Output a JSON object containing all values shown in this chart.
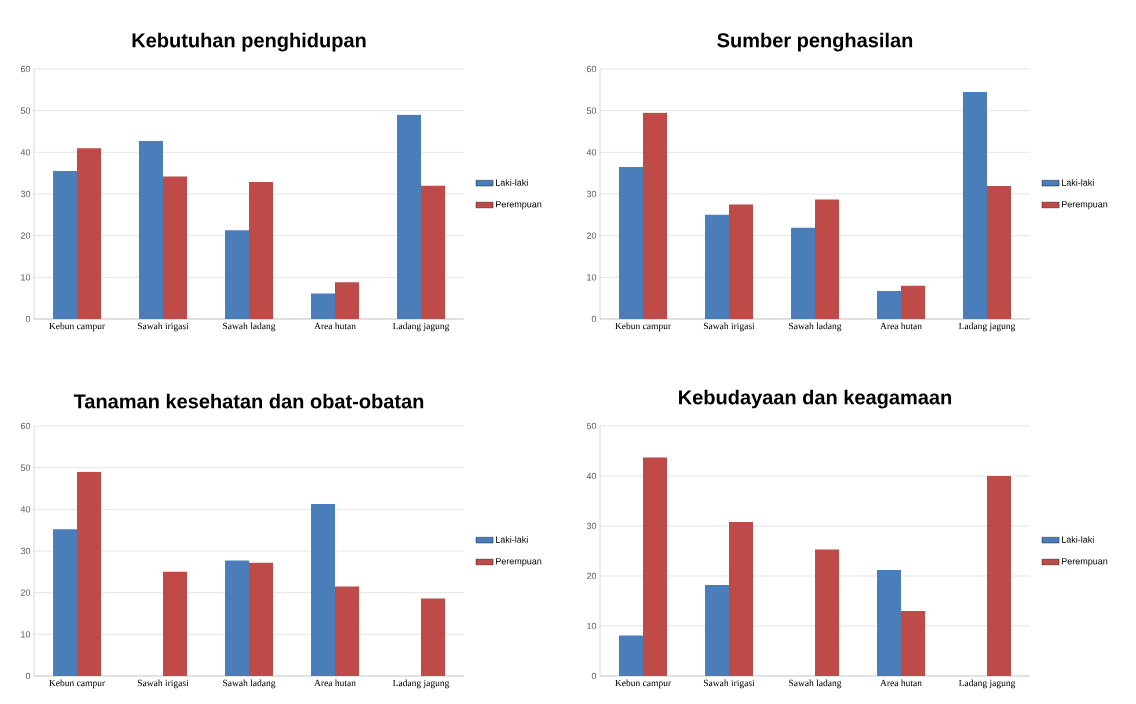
{
  "chart_data": [
    {
      "type": "bar",
      "title": "Kebutuhan penghidupan",
      "categories": [
        "Kebun campur",
        "Sawah irigasi",
        "Sawah ladang",
        "Area hutan",
        "Ladang jagung"
      ],
      "series": [
        {
          "name": "Laki-laki",
          "color": "#4a7ebb",
          "values": [
            35.5,
            42.7,
            21.3,
            6.1,
            49
          ]
        },
        {
          "name": "Perempuan",
          "color": "#be4b48",
          "values": [
            41,
            34.2,
            32.9,
            8.8,
            32
          ]
        }
      ],
      "ylim": [
        0,
        60
      ],
      "yticks": [
        0,
        10,
        20,
        30,
        40,
        50,
        60
      ],
      "grid": "y",
      "legend": "right"
    },
    {
      "type": "bar",
      "title": "Sumber penghasilan",
      "categories": [
        "Kebun campur",
        "Sawah irigasi",
        "Sawah ladang",
        "Area hutan",
        "Ladang jagung"
      ],
      "series": [
        {
          "name": "Laki-laki",
          "color": "#4a7ebb",
          "values": [
            36.5,
            25,
            21.9,
            6.7,
            54.5
          ]
        },
        {
          "name": "Perempuan",
          "color": "#be4b48",
          "values": [
            49.5,
            27.5,
            28.7,
            8,
            31.9
          ]
        }
      ],
      "ylim": [
        0,
        60
      ],
      "yticks": [
        0,
        10,
        20,
        30,
        40,
        50,
        60
      ],
      "grid": "y",
      "legend": "right"
    },
    {
      "type": "bar",
      "title": "Tanaman kesehatan dan obat-obatan",
      "categories": [
        "Kebun campur",
        "Sawah irigasi",
        "Sawah ladang",
        "Area hutan",
        "Ladang jagung"
      ],
      "series": [
        {
          "name": "Laki-laki",
          "color": "#4a7ebb",
          "values": [
            35.2,
            null,
            27.7,
            41.3,
            null
          ]
        },
        {
          "name": "Perempuan",
          "color": "#be4b48",
          "values": [
            49,
            25,
            27.2,
            21.5,
            18.6
          ]
        }
      ],
      "ylim": [
        0,
        60
      ],
      "yticks": [
        0,
        10,
        20,
        30,
        40,
        50,
        60
      ],
      "grid": "y",
      "legend": "right"
    },
    {
      "type": "bar",
      "title": "Kebudayaan dan keagamaan",
      "categories": [
        "Kebun campur",
        "Sawah irigasi",
        "Sawah ladang",
        "Area hutan",
        "Ladang jagung"
      ],
      "series": [
        {
          "name": "Laki-laki",
          "color": "#4a7ebb",
          "values": [
            8.1,
            18.2,
            null,
            21.2,
            null
          ]
        },
        {
          "name": "Perempuan",
          "color": "#be4b48",
          "values": [
            43.7,
            30.8,
            25.3,
            13,
            40
          ]
        }
      ],
      "ylim": [
        0,
        50
      ],
      "yticks": [
        0,
        10,
        20,
        30,
        40,
        50
      ],
      "grid": "y",
      "legend": "right"
    }
  ]
}
